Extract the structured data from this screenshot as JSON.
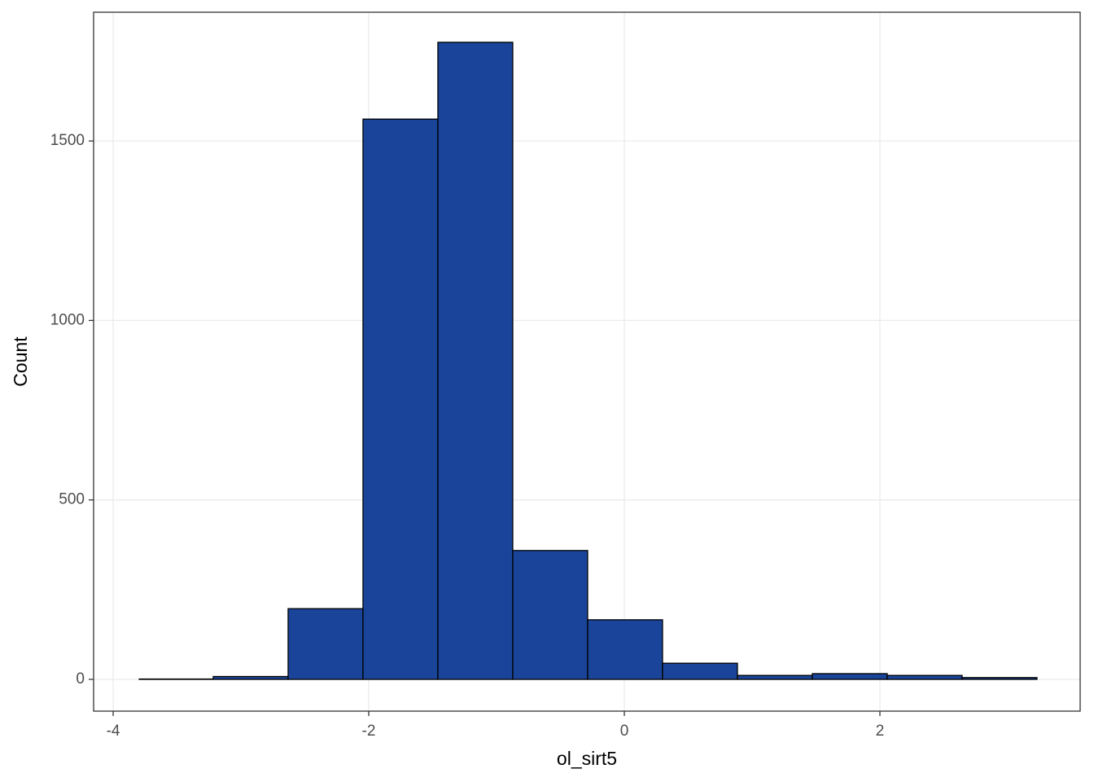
{
  "chart_data": {
    "type": "histogram",
    "x_label": "ol_sirt5",
    "y_label": "Count",
    "bins": [
      -3.796,
      -3.217,
      -2.631,
      -2.045,
      -1.459,
      -0.873,
      -0.287,
      0.299,
      0.885,
      1.471,
      2.057,
      2.643,
      3.229
    ],
    "values": [
      1,
      8,
      197,
      1561,
      1775,
      359,
      166,
      45,
      11,
      16,
      11,
      5
    ],
    "color": "#1a4499",
    "edge_color": "#000000",
    "xlim": [
      -4.153,
      3.567
    ],
    "xticks": [
      -4,
      -2,
      0,
      2
    ],
    "ylim": [
      -88.5,
      1858.8
    ],
    "yticks": [
      0,
      500,
      1000,
      1500
    ],
    "grid": true
  }
}
